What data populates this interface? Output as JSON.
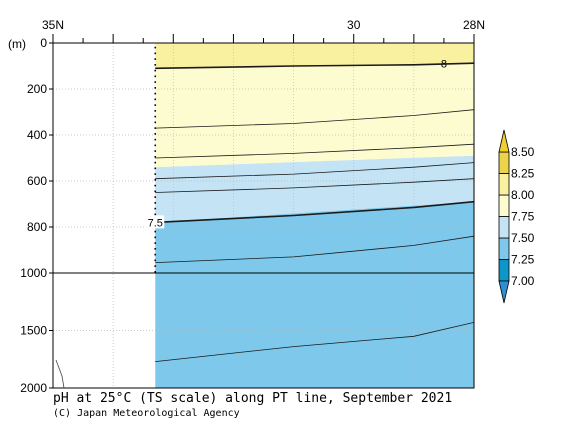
{
  "chart_data": {
    "type": "contour-section",
    "title": "pH at 25°C (TS scale) along PT line, September 2021",
    "credit": "(C) Japan Meteorological Agency",
    "yunit": "(m)",
    "x_ticks_top": [
      {
        "value": 35,
        "label": "35N"
      },
      {
        "value": 30,
        "label": "30"
      },
      {
        "value": 28,
        "label": "28N"
      }
    ],
    "xlim": [
      35,
      28
    ],
    "data_start_lat": 33.3,
    "y_ticks": [
      {
        "value": 0,
        "label": "0"
      },
      {
        "value": 200,
        "label": "200"
      },
      {
        "value": 400,
        "label": "400"
      },
      {
        "value": 600,
        "label": "600"
      },
      {
        "value": 800,
        "label": "800"
      },
      {
        "value": 1000,
        "label": "1000"
      },
      {
        "value": 1500,
        "label": "1500"
      },
      {
        "value": 2000,
        "label": "2000"
      }
    ],
    "ylim": [
      0,
      2000
    ],
    "y_scale_break": 1000,
    "colorbar": {
      "levels": [
        "7.00",
        "7.25",
        "7.50",
        "7.75",
        "8.00",
        "8.25",
        "8.50"
      ],
      "colors": [
        "#0d97c9",
        "#7ec8eb",
        "#c4e3f5",
        "#fdfcd0",
        "#f9f1a0",
        "#ecd44a"
      ],
      "extend": "both",
      "low_arrow_color": "#2f8fd2",
      "high_arrow_color": "#f0cf30"
    },
    "filled_bands": [
      {
        "range": "8.00-8.25",
        "color": "#f9f1a0",
        "top_west": 0,
        "top_east": 0,
        "bottom_west": 110,
        "bottom_east": 90
      },
      {
        "range": "7.75-8.00",
        "color": "#fdfcd0",
        "top_west": 110,
        "top_east": 90,
        "bottom_west": 540,
        "bottom_east": 490
      },
      {
        "range": "7.50-7.75",
        "color": "#c4e3f5",
        "top_west": 540,
        "top_east": 490,
        "bottom_west": 780,
        "bottom_east": 690
      },
      {
        "range": "7.25-7.50",
        "color": "#7ec8eb",
        "top_west": 780,
        "top_east": 690,
        "bottom_west": 2000,
        "bottom_east": 2000
      }
    ],
    "contours": [
      {
        "level": "8",
        "label": "8",
        "bold": true,
        "points": [
          [
            33.3,
            110
          ],
          [
            31,
            100
          ],
          [
            29,
            95
          ],
          [
            28,
            88
          ]
        ],
        "label_at": [
          28.5,
          90
        ]
      },
      {
        "level": "",
        "bold": false,
        "points": [
          [
            33.3,
            370
          ],
          [
            31,
            350
          ],
          [
            29,
            315
          ],
          [
            28,
            290
          ]
        ]
      },
      {
        "level": "",
        "bold": false,
        "points": [
          [
            33.3,
            500
          ],
          [
            31,
            480
          ],
          [
            29,
            455
          ],
          [
            28,
            440
          ]
        ]
      },
      {
        "level": "",
        "bold": false,
        "points": [
          [
            33.3,
            590
          ],
          [
            31,
            570
          ],
          [
            29,
            540
          ],
          [
            28,
            520
          ]
        ]
      },
      {
        "level": "",
        "bold": false,
        "points": [
          [
            33.3,
            650
          ],
          [
            31,
            630
          ],
          [
            29,
            605
          ],
          [
            28,
            590
          ]
        ]
      },
      {
        "level": "7.5",
        "label": "7.5",
        "bold": true,
        "points": [
          [
            33.3,
            780
          ],
          [
            31,
            750
          ],
          [
            29,
            715
          ],
          [
            28,
            690
          ]
        ],
        "label_at": [
          33.3,
          780
        ]
      },
      {
        "level": "",
        "bold": false,
        "points": [
          [
            33.3,
            955
          ],
          [
            31,
            930
          ],
          [
            29,
            880
          ],
          [
            28,
            840
          ]
        ]
      },
      {
        "level": "",
        "bold": false,
        "points": [
          [
            33.3,
            1770
          ],
          [
            31,
            1640
          ],
          [
            29,
            1550
          ],
          [
            28,
            1430
          ]
        ]
      }
    ],
    "grid": true
  }
}
